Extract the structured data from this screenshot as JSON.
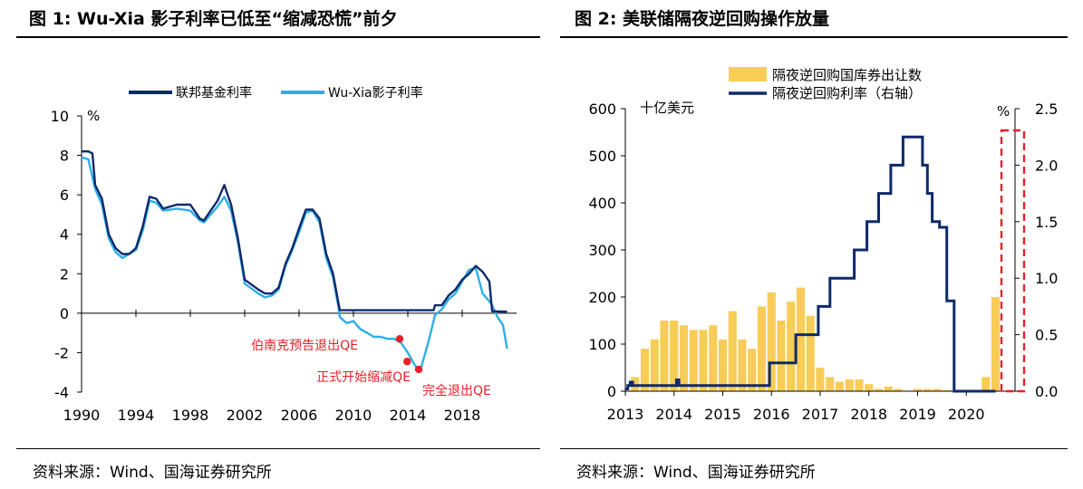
{
  "panels": {
    "left": {
      "title": "图 1:  Wu-Xia 影子利率已低至“缩减恐慌”前夕",
      "source": "资料来源：Wind、国海证券研究所"
    },
    "right": {
      "title": "图 2:  美联储隔夜逆回购操作放量",
      "source": "资料来源：Wind、国海证券研究所"
    }
  },
  "colors": {
    "navy": "#0d2a6b",
    "sky": "#2eaee6",
    "gold": "#f7cc57",
    "red": "#e8202a"
  },
  "chart_data": [
    {
      "type": "line",
      "unit_label": "%",
      "xlim": [
        1990,
        2022
      ],
      "ylim": [
        -4,
        10
      ],
      "x_ticks": [
        "1990",
        "1994",
        "1998",
        "2002",
        "2006",
        "2010",
        "2014",
        "2018"
      ],
      "y_ticks": [
        "10",
        "8",
        "6",
        "4",
        "2",
        "0",
        "-2",
        "-4"
      ],
      "grid": false,
      "legend": "top",
      "series": [
        {
          "name": "联邦基金利率",
          "color": "#0d2a6b",
          "x": [
            1990,
            1990.5,
            1990.8,
            1991,
            1991.5,
            1992,
            1992.5,
            1993,
            1993.5,
            1994,
            1994.5,
            1995,
            1995.5,
            1996,
            1997,
            1998,
            1998.7,
            1999,
            1999.5,
            2000,
            2000.5,
            2001,
            2001.5,
            2002,
            2003,
            2003.5,
            2004,
            2004.5,
            2005,
            2005.5,
            2006,
            2006.5,
            2007,
            2007.5,
            2008,
            2008.5,
            2008.9,
            2009,
            2015,
            2015.9,
            2016,
            2016.5,
            2017,
            2017.5,
            2018,
            2018.5,
            2019,
            2019.5,
            2020,
            2020.2,
            2021,
            2021.3
          ],
          "y": [
            8.2,
            8.2,
            8.1,
            6.5,
            5.8,
            4.0,
            3.3,
            3.0,
            3.0,
            3.3,
            4.4,
            5.9,
            5.8,
            5.3,
            5.5,
            5.5,
            4.8,
            4.7,
            5.2,
            5.7,
            6.5,
            5.5,
            3.8,
            1.7,
            1.2,
            1.0,
            1.0,
            1.3,
            2.5,
            3.3,
            4.3,
            5.25,
            5.25,
            4.8,
            3.0,
            2.0,
            0.5,
            0.15,
            0.15,
            0.15,
            0.4,
            0.4,
            0.9,
            1.2,
            1.7,
            2.0,
            2.4,
            2.1,
            1.6,
            0.1,
            0.08,
            0.08
          ]
        },
        {
          "name": "Wu-Xia影子利率",
          "color": "#2eaee6",
          "x": [
            1990,
            1990.5,
            1991,
            1991.5,
            1992,
            1992.5,
            1993,
            1993.5,
            1994,
            1994.5,
            1995,
            1995.5,
            1996,
            1997,
            1998,
            1998.7,
            1999,
            1999.5,
            2000,
            2000.5,
            2001,
            2001.5,
            2002,
            2003,
            2003.5,
            2004,
            2004.5,
            2005,
            2005.5,
            2006,
            2006.5,
            2007,
            2007.5,
            2008,
            2008.5,
            2008.9,
            2009,
            2009.5,
            2010,
            2010.5,
            2011,
            2011.5,
            2012,
            2012.5,
            2013,
            2013.5,
            2014,
            2014.4,
            2014.8,
            2015,
            2015.5,
            2016,
            2016.5,
            2017,
            2017.5,
            2018,
            2018.5,
            2019,
            2019.5,
            2020,
            2020.2,
            2020.6,
            2021,
            2021.3
          ],
          "y": [
            7.9,
            7.8,
            6.3,
            5.5,
            3.8,
            3.1,
            2.8,
            3.0,
            3.2,
            4.2,
            5.7,
            5.6,
            5.2,
            5.3,
            5.2,
            4.7,
            4.6,
            5.0,
            5.4,
            5.9,
            5.2,
            3.6,
            1.5,
            1.0,
            0.8,
            0.9,
            1.2,
            2.4,
            3.2,
            4.1,
            5.1,
            5.2,
            4.6,
            2.8,
            1.8,
            0.3,
            -0.2,
            -0.5,
            -0.4,
            -0.8,
            -1.0,
            -1.2,
            -1.2,
            -1.3,
            -1.3,
            -1.5,
            -2.0,
            -2.5,
            -2.95,
            -2.7,
            -1.5,
            -0.1,
            0.2,
            0.7,
            1.0,
            1.6,
            2.2,
            2.3,
            1.0,
            0.6,
            0.4,
            -0.2,
            -0.6,
            -1.8
          ]
        }
      ],
      "events": [
        {
          "label": "伯南克预告退出QE",
          "x": 2013.4,
          "y": -1.3
        },
        {
          "label": "正式开始缩减QE",
          "x": 2013.95,
          "y": -2.45
        },
        {
          "label": "完全退出QE",
          "x": 2014.8,
          "y": -2.85
        }
      ]
    },
    {
      "type": "bar",
      "units_left": "十亿美元",
      "units_right": "%",
      "xlim": [
        2013,
        2021
      ],
      "ylim_left": [
        0,
        600
      ],
      "ylim_right": [
        0,
        2.5
      ],
      "x_ticks": [
        "2013",
        "2014",
        "2015",
        "2016",
        "2017",
        "2018",
        "2019",
        "2020"
      ],
      "y_ticks_left": [
        "600",
        "500",
        "400",
        "300",
        "200",
        "100",
        "0"
      ],
      "y_ticks_right": [
        "2.5",
        "2.0",
        "1.5",
        "1.0",
        "0.5",
        "0.0"
      ],
      "grid": false,
      "legend": "top",
      "series": [
        {
          "name": "隔夜逆回购国库券出让数",
          "type": "bar",
          "axis": "left",
          "color": "#f7cc57",
          "x": [
            2013.2,
            2013.4,
            2013.6,
            2013.8,
            2014.0,
            2014.2,
            2014.4,
            2014.6,
            2014.8,
            2015.0,
            2015.2,
            2015.4,
            2015.6,
            2015.8,
            2016.0,
            2016.2,
            2016.4,
            2016.6,
            2016.8,
            2017.0,
            2017.2,
            2017.4,
            2017.6,
            2017.8,
            2018.0,
            2018.2,
            2018.4,
            2018.6,
            2018.8,
            2019.0,
            2019.2,
            2019.4,
            2019.6,
            2019.8,
            2020.0,
            2020.2,
            2020.4,
            2020.6
          ],
          "y": [
            30,
            90,
            110,
            150,
            150,
            140,
            130,
            130,
            140,
            110,
            170,
            110,
            90,
            180,
            210,
            150,
            190,
            220,
            160,
            50,
            30,
            20,
            25,
            25,
            15,
            5,
            10,
            5,
            0,
            5,
            5,
            5,
            2,
            0,
            0,
            0,
            30,
            200
          ]
        },
        {
          "name": "隔夜逆回购利率（右轴）",
          "type": "step",
          "axis": "right",
          "color": "#0d2a6b",
          "x": [
            2013,
            2013.05,
            2013.1,
            2013.15,
            2013.9,
            2014.05,
            2014.1,
            2014.2,
            2015.2,
            2015.96,
            2016.5,
            2016.96,
            2017.2,
            2017.45,
            2017.7,
            2017.96,
            2018.2,
            2018.45,
            2018.7,
            2018.96,
            2019.1,
            2019.2,
            2019.3,
            2019.45,
            2019.55,
            2019.6,
            2019.75,
            2020.6
          ],
          "y": [
            0.02,
            0.05,
            0.08,
            0.05,
            0.05,
            0.1,
            0.05,
            0.05,
            0.05,
            0.25,
            0.5,
            0.75,
            1.0,
            1.0,
            1.25,
            1.5,
            1.75,
            2.0,
            2.25,
            2.25,
            2.0,
            1.75,
            1.5,
            1.45,
            1.45,
            0.8,
            0.0,
            0.0
          ]
        }
      ],
      "annotation": "red dashed box highlighting late-2020 surge"
    }
  ]
}
